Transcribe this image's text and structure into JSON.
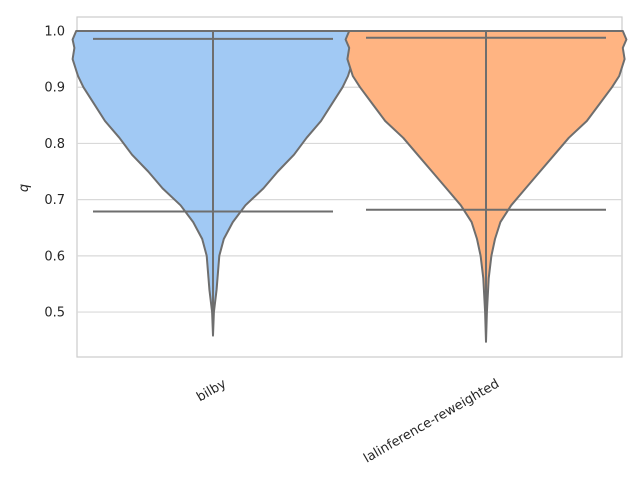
{
  "chart_data": {
    "type": "violin",
    "ylabel": "q",
    "ylim": [
      0.42,
      1.025
    ],
    "yticks": [
      "0.5",
      "0.6",
      "0.7",
      "0.8",
      "0.9",
      "1.0"
    ],
    "grid": "horizontal",
    "categories": [
      "bilby",
      "lalinference-reweighted"
    ],
    "series": [
      {
        "category": "bilby",
        "color": "#a1c9f4",
        "min": 0.458,
        "max": 1.0,
        "lower_quantile_line": 0.679,
        "upper_quantile_line": 0.986,
        "density_profile": [
          [
            0.458,
            0.0
          ],
          [
            0.5,
            0.005
          ],
          [
            0.54,
            0.02
          ],
          [
            0.56,
            0.025
          ],
          [
            0.6,
            0.035
          ],
          [
            0.63,
            0.06
          ],
          [
            0.66,
            0.11
          ],
          [
            0.69,
            0.18
          ],
          [
            0.72,
            0.28
          ],
          [
            0.75,
            0.36
          ],
          [
            0.78,
            0.45
          ],
          [
            0.81,
            0.52
          ],
          [
            0.84,
            0.6
          ],
          [
            0.87,
            0.66
          ],
          [
            0.9,
            0.72
          ],
          [
            0.92,
            0.75
          ],
          [
            0.95,
            0.78
          ],
          [
            0.97,
            0.77
          ],
          [
            0.985,
            0.78
          ],
          [
            1.0,
            0.76
          ]
        ]
      },
      {
        "category": "lalinference-reweighted",
        "color": "#ffb482",
        "min": 0.447,
        "max": 1.0,
        "lower_quantile_line": 0.682,
        "upper_quantile_line": 0.988,
        "density_profile": [
          [
            0.447,
            0.0
          ],
          [
            0.5,
            0.005
          ],
          [
            0.53,
            0.01
          ],
          [
            0.56,
            0.015
          ],
          [
            0.6,
            0.03
          ],
          [
            0.63,
            0.05
          ],
          [
            0.66,
            0.08
          ],
          [
            0.69,
            0.14
          ],
          [
            0.72,
            0.22
          ],
          [
            0.75,
            0.3
          ],
          [
            0.78,
            0.38
          ],
          [
            0.81,
            0.46
          ],
          [
            0.84,
            0.56
          ],
          [
            0.87,
            0.63
          ],
          [
            0.9,
            0.7
          ],
          [
            0.92,
            0.74
          ],
          [
            0.95,
            0.77
          ],
          [
            0.97,
            0.76
          ],
          [
            0.985,
            0.78
          ],
          [
            1.0,
            0.76
          ]
        ]
      }
    ]
  }
}
